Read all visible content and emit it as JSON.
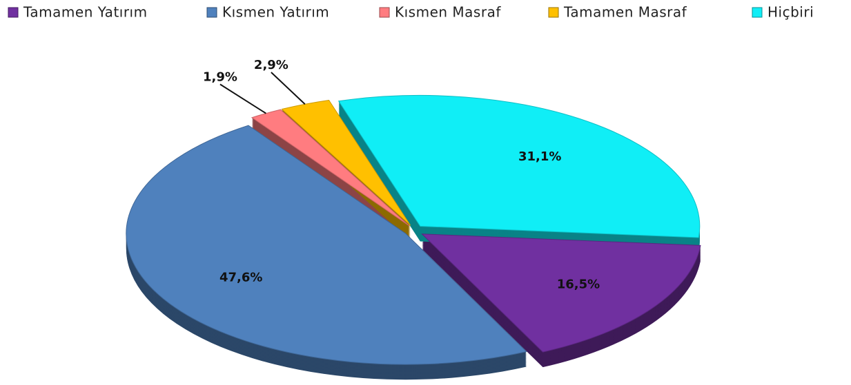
{
  "chart_data": {
    "type": "pie",
    "categories": [
      "Tamamen Yatırım",
      "Kısmen Yatırım",
      "Kısmen Masraf",
      "Tamamen Masraf",
      "Hiçbiri"
    ],
    "values": [
      16.5,
      47.6,
      1.9,
      2.9,
      31.1
    ],
    "value_labels": [
      "16,5%",
      "47,6%",
      "1,9%",
      "2,9%",
      "31,1%"
    ],
    "colors": [
      "#7030a0",
      "#4f81bd",
      "#ff7c80",
      "#ffc000",
      "#10eef6"
    ],
    "legend": "top"
  }
}
